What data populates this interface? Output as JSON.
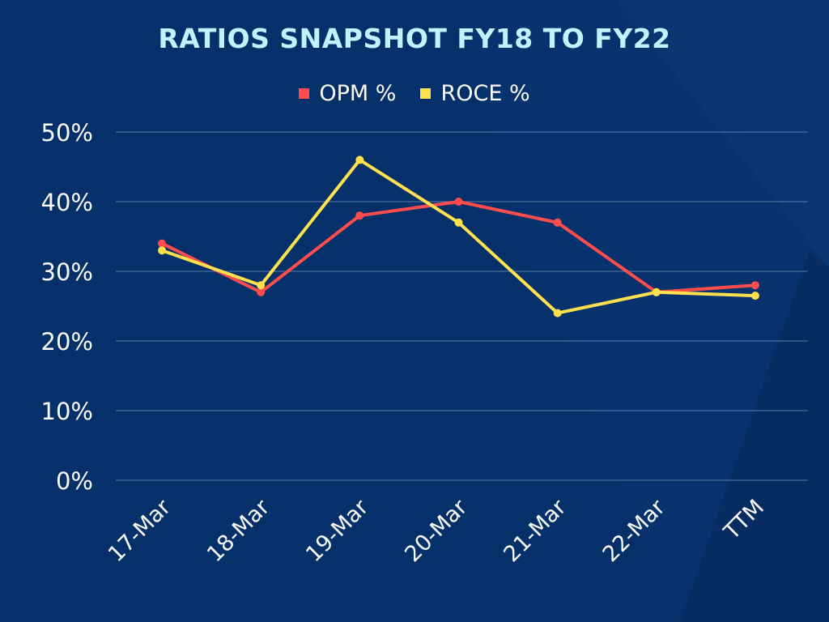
{
  "chart_data": {
    "type": "line",
    "title": "RATIOS SNAPSHOT FY18 TO FY22",
    "categories": [
      "17-Mar",
      "18-Mar",
      "19-Mar",
      "20-Mar",
      "21-Mar",
      "22-Mar",
      "TTM"
    ],
    "series": [
      {
        "name": "OPM %",
        "color": "#ff4d4d",
        "values": [
          34,
          27,
          38,
          40,
          37,
          27,
          28
        ]
      },
      {
        "name": "ROCE %",
        "color": "#ffe14d",
        "values": [
          33,
          28,
          46,
          37,
          24,
          27,
          26.5
        ]
      }
    ],
    "ylim": [
      0,
      50
    ],
    "yticks": [
      "0%",
      "10%",
      "20%",
      "30%",
      "40%",
      "50%"
    ],
    "ytick_values": [
      0,
      10,
      20,
      30,
      40,
      50
    ],
    "grid": true,
    "legend": "top-center",
    "xlabel": "",
    "ylabel": ""
  }
}
